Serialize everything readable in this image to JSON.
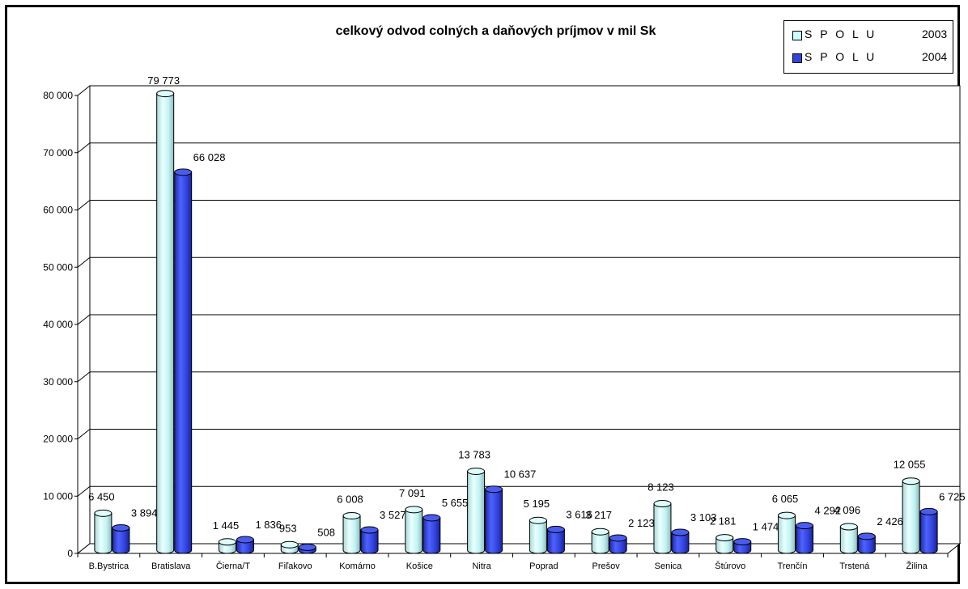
{
  "chart_data": {
    "type": "bar",
    "title": "celkový odvod colných a daňových príjmov v mil Sk",
    "categories": [
      "B.Bystrica",
      "Bratislava",
      "Čierna/T",
      "Fiľakovo",
      "Komárno",
      "Košice",
      "Nitra",
      "Poprad",
      "Prešov",
      "Senica",
      "Štúrovo",
      "Trenčín",
      "Trstená",
      "Žilina"
    ],
    "series": [
      {
        "name": "S P O L U",
        "year": "2003",
        "color": "#ccffff",
        "values": [
          6450,
          79773,
          1445,
          953,
          6008,
          7091,
          13783,
          5195,
          3217,
          8123,
          2181,
          6065,
          4096,
          12055
        ],
        "labels": [
          "6 450",
          "79 773",
          "1 445",
          "953",
          "6 008",
          "7 091",
          "13 783",
          "5 195",
          "3 217",
          "8 123",
          "2 181",
          "6 065",
          "4 096",
          "12 055"
        ]
      },
      {
        "name": "S P O L U",
        "year": "2004",
        "color": "#3344dd",
        "values": [
          3894,
          66028,
          1836,
          508,
          3527,
          5655,
          10637,
          3616,
          2123,
          3103,
          1474,
          4292,
          2426,
          6725
        ],
        "labels": [
          "3 894",
          "66 028",
          "1 836",
          "508",
          "3 527",
          "5 655",
          "10 637",
          "3 616",
          "2 123",
          "3 103",
          "1 474",
          "4 292",
          "2 426",
          "6 725"
        ]
      }
    ],
    "y_ticks": [
      0,
      10000,
      20000,
      30000,
      40000,
      50000,
      60000,
      70000,
      80000
    ],
    "y_tick_labels": [
      "0",
      "10 000",
      "20 000",
      "30 000",
      "40 000",
      "50 000",
      "60 000",
      "70 000",
      "80 000"
    ],
    "ylim": [
      0,
      80000
    ],
    "grid": true,
    "legend_position": "top-right",
    "style": "3d-cylinder"
  }
}
